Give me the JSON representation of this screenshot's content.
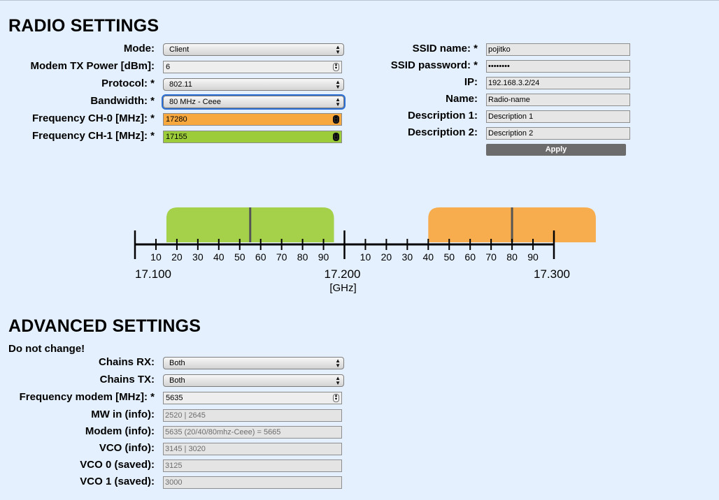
{
  "radio": {
    "title": "RADIO SETTINGS",
    "left": [
      {
        "key": "mode",
        "label": "Mode:",
        "value": "Client",
        "kind": "select"
      },
      {
        "key": "tx",
        "label": "Modem TX Power [dBm]:",
        "value": "6",
        "kind": "number"
      },
      {
        "key": "protocol",
        "label": "Protocol: *",
        "value": "802.11",
        "kind": "select"
      },
      {
        "key": "bandwidth",
        "label": "Bandwidth: *",
        "value": "80 MHz - Ceee",
        "kind": "select"
      },
      {
        "key": "ch0",
        "label": "Frequency CH-0 [MHz]: *",
        "value": "17280",
        "kind": "number"
      },
      {
        "key": "ch1",
        "label": "Frequency CH-1 [MHz]: *",
        "value": "17155",
        "kind": "number"
      }
    ],
    "right": [
      {
        "key": "ssid",
        "label": "SSID name: *",
        "value": "pojitko"
      },
      {
        "key": "pass",
        "label": "SSID password: *",
        "value": "••••••••"
      },
      {
        "key": "ip",
        "label": "IP:",
        "value": "192.168.3.2/24"
      },
      {
        "key": "name",
        "label": "Name:",
        "value": "Radio-name"
      },
      {
        "key": "d1",
        "label": "Description 1:",
        "value": "Description 1"
      },
      {
        "key": "d2",
        "label": "Description 2:",
        "value": "Description 2"
      }
    ],
    "apply_label": "Apply"
  },
  "spectrum": {
    "ticks": [
      "10",
      "20",
      "30",
      "40",
      "50",
      "60",
      "70",
      "80",
      "90"
    ],
    "major_labels": [
      "17.100",
      "17.200",
      "17.300"
    ],
    "unit": "[GHz]",
    "channels": [
      {
        "name": "CH-1",
        "center_mhz": 17155,
        "width_mhz": 80,
        "color": "#a4d04a"
      },
      {
        "name": "CH-0",
        "center_mhz": 17280,
        "width_mhz": 80,
        "color": "#f7ac4e"
      }
    ]
  },
  "advanced": {
    "title": "ADVANCED SETTINGS",
    "note": "Do not change!",
    "rows": [
      {
        "key": "crx",
        "label": "Chains RX:",
        "value": "Both",
        "kind": "select"
      },
      {
        "key": "ctx",
        "label": "Chains TX:",
        "value": "Both",
        "kind": "select"
      },
      {
        "key": "fm",
        "label": "Frequency modem [MHz]: *",
        "value": "5635",
        "kind": "number"
      },
      {
        "key": "mw",
        "label": "MW in (info):",
        "value": "2520 | 2645",
        "kind": "ro"
      },
      {
        "key": "mi",
        "label": "Modem (info):",
        "value": "5635 (20/40/80mhz-Ceee) = 5665",
        "kind": "ro"
      },
      {
        "key": "vco",
        "label": "VCO (info):",
        "value": "3145 | 3020",
        "kind": "ro"
      },
      {
        "key": "v0",
        "label": "VCO 0 (saved):",
        "value": "3125",
        "kind": "ro"
      },
      {
        "key": "v1",
        "label": "VCO 1 (saved):",
        "value": "3000",
        "kind": "ro"
      }
    ]
  }
}
